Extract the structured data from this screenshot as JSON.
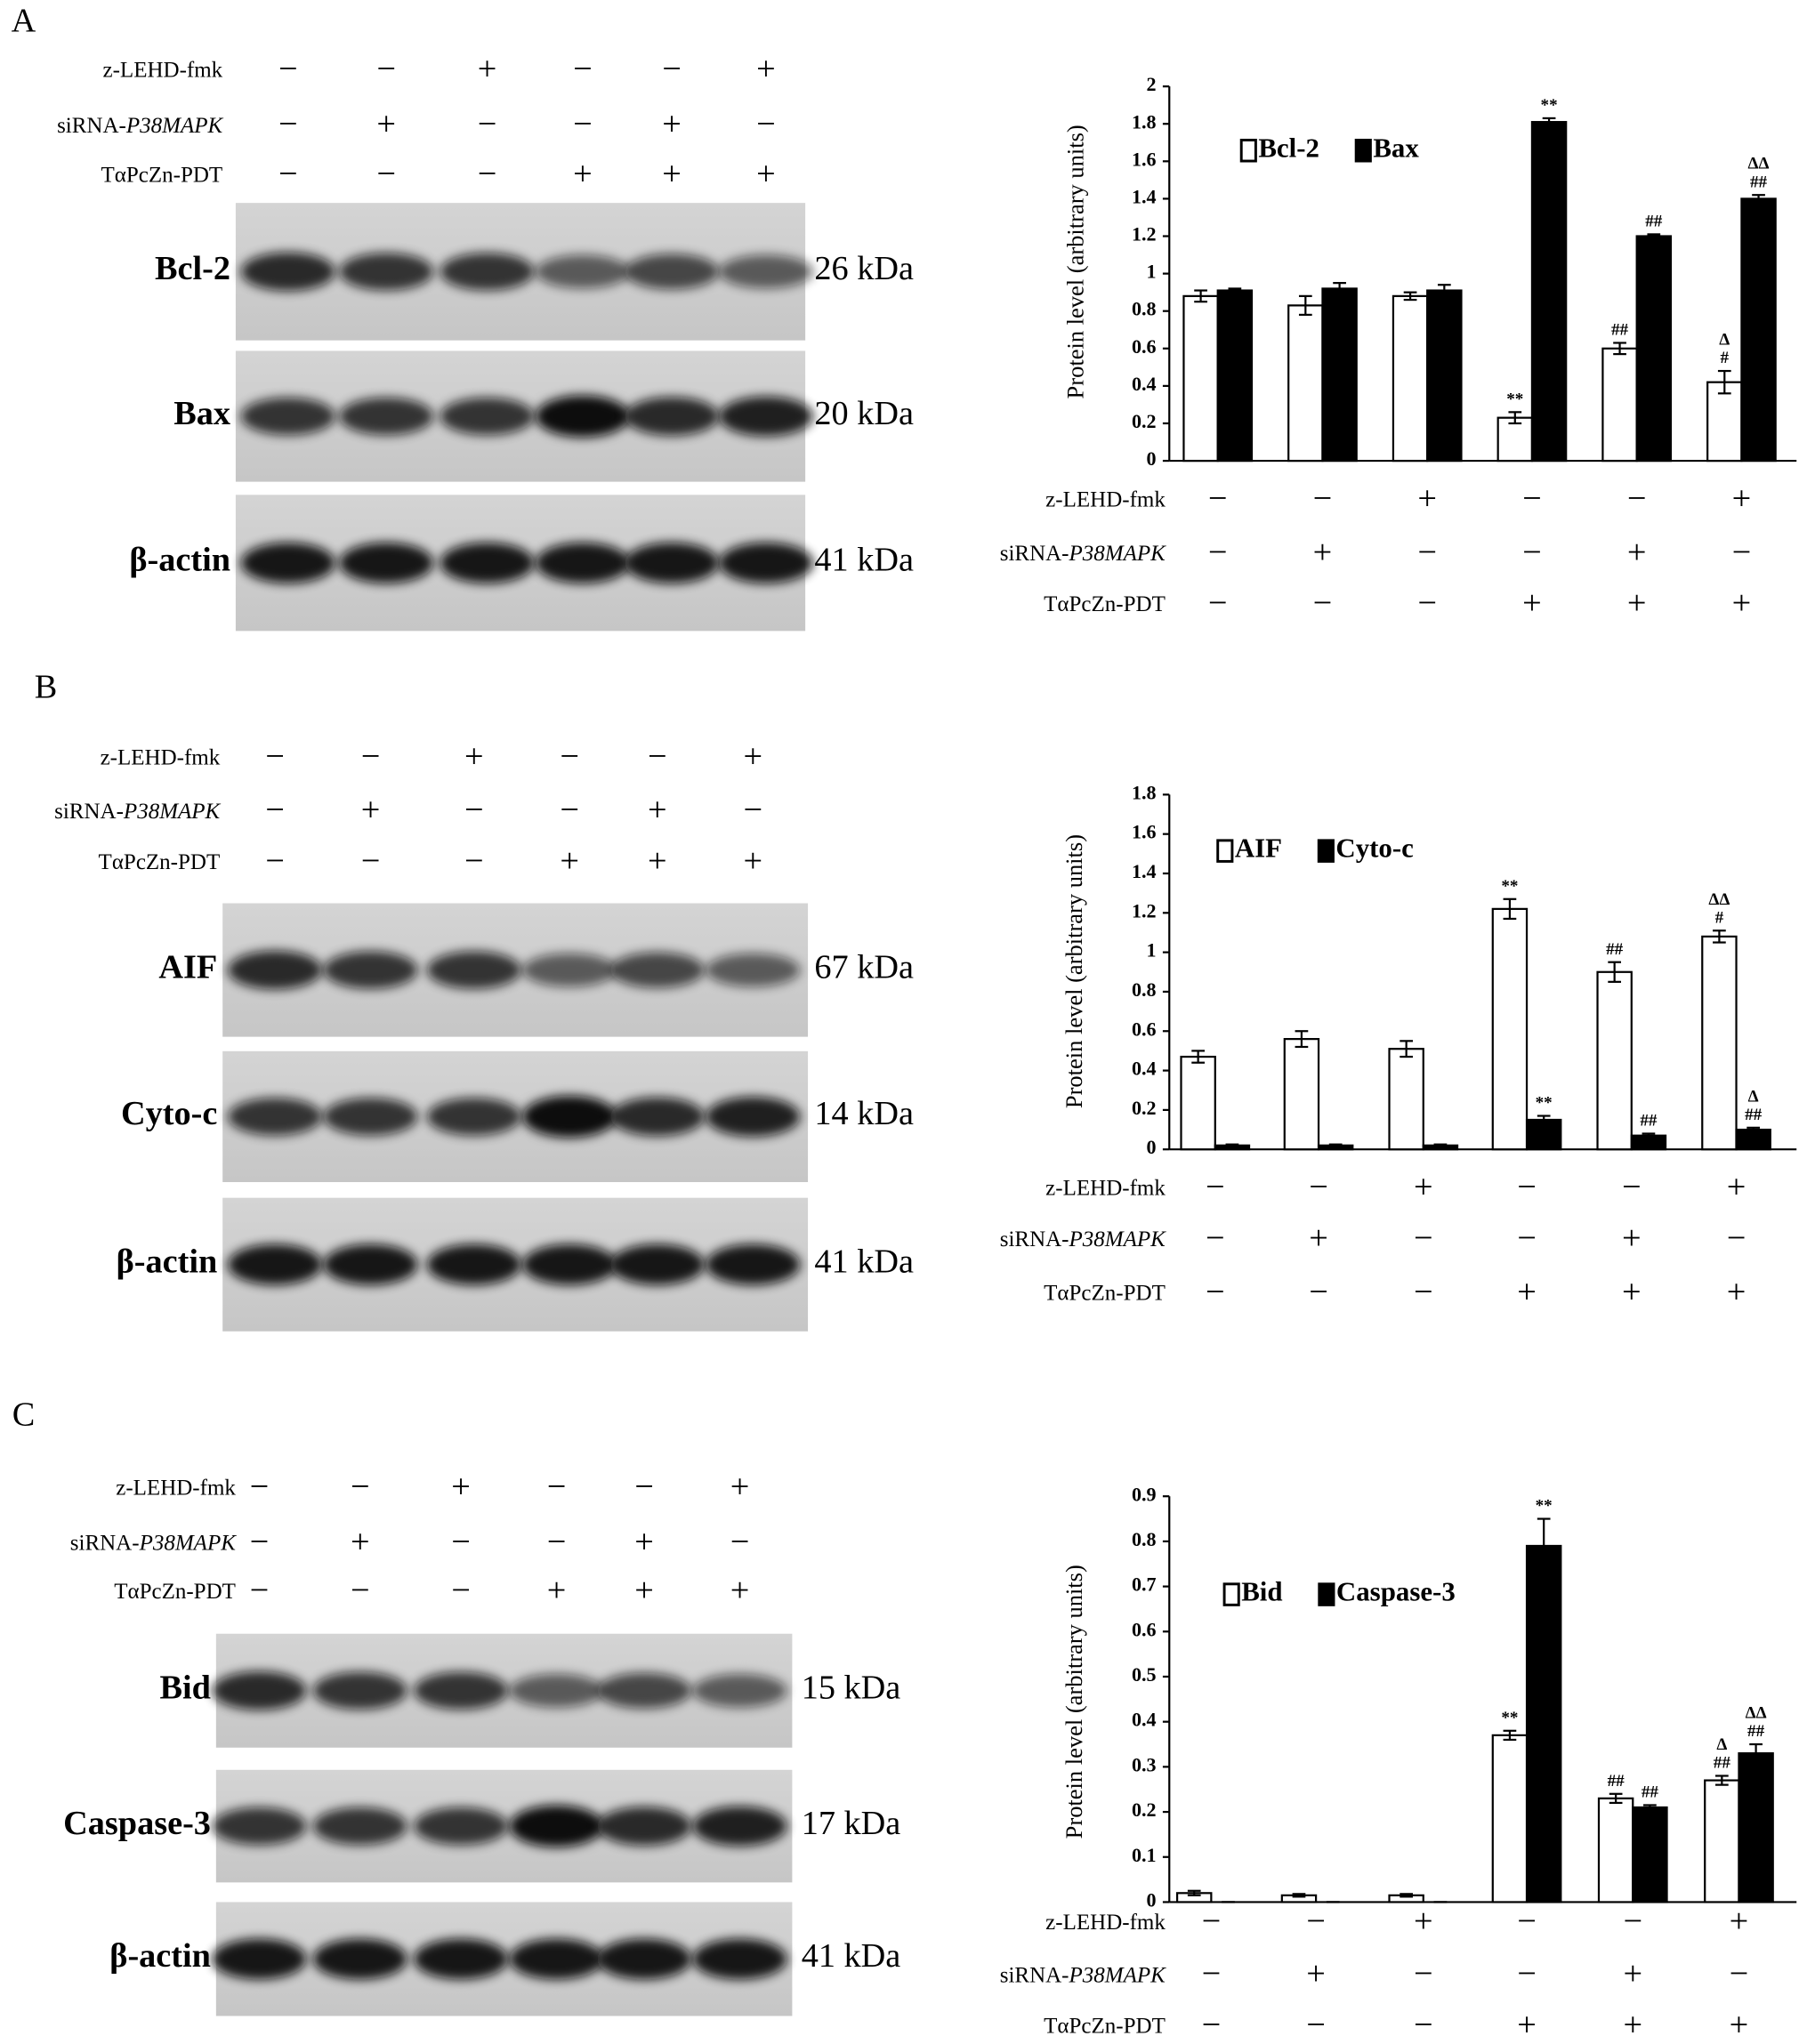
{
  "panels": [
    {
      "letter": "A",
      "treatments": [
        {
          "name": "z-LEHD-fmk",
          "values": [
            "−",
            "−",
            "+",
            "−",
            "−",
            "+"
          ]
        },
        {
          "name": "siRNA-P38MAPK",
          "values": [
            "−",
            "+",
            "−",
            "−",
            "+",
            "−"
          ]
        },
        {
          "name": "TαPcZn-PDT",
          "values": [
            "−",
            "−",
            "−",
            "+",
            "+",
            "+"
          ]
        }
      ],
      "blots": [
        {
          "name": "Bcl-2",
          "size": "26 kDa"
        },
        {
          "name": "Bax",
          "size": "20 kDa"
        },
        {
          "name": "β-actin",
          "size": "41 kDa"
        }
      ]
    },
    {
      "letter": "B",
      "treatments": [
        {
          "name": "z-LEHD-fmk",
          "values": [
            "−",
            "−",
            "+",
            "−",
            "−",
            "+"
          ]
        },
        {
          "name": "siRNA-P38MAPK",
          "values": [
            "−",
            "+",
            "−",
            "−",
            "+",
            "−"
          ]
        },
        {
          "name": "TαPcZn-PDT",
          "values": [
            "−",
            "−",
            "−",
            "+",
            "+",
            "+"
          ]
        }
      ],
      "blots": [
        {
          "name": "AIF",
          "size": "67 kDa"
        },
        {
          "name": "Cyto-c",
          "size": "14 kDa"
        },
        {
          "name": "β-actin",
          "size": "41 kDa"
        }
      ]
    },
    {
      "letter": "C",
      "treatments": [
        {
          "name": "z-LEHD-fmk",
          "values": [
            "−",
            "−",
            "+",
            "−",
            "−",
            "+"
          ]
        },
        {
          "name": "siRNA-P38MAPK",
          "values": [
            "−",
            "+",
            "−",
            "−",
            "+",
            "−"
          ]
        },
        {
          "name": "TαPcZn-PDT",
          "values": [
            "−",
            "−",
            "−",
            "+",
            "+",
            "+"
          ]
        }
      ],
      "blots": [
        {
          "name": "Bid",
          "size": "15 kDa"
        },
        {
          "name": "Caspase-3",
          "size": "17 kDa"
        },
        {
          "name": "β-actin",
          "size": "41 kDa"
        }
      ]
    }
  ],
  "chart_data": [
    {
      "type": "bar",
      "ylabel": "Protein level  (arbitrary units)",
      "ylim": [
        0,
        2
      ],
      "yticks": [
        0,
        0.2,
        0.4,
        0.6,
        0.8,
        1,
        1.2,
        1.4,
        1.6,
        1.8,
        2
      ],
      "legend": "upper left",
      "series": [
        {
          "name": "Bcl-2",
          "color": "#ffffff",
          "values": [
            0.88,
            0.83,
            0.88,
            0.23,
            0.6,
            0.42
          ],
          "errors": [
            0.03,
            0.05,
            0.02,
            0.03,
            0.03,
            0.06
          ],
          "annotations": [
            [],
            [],
            [],
            [
              "**"
            ],
            [
              "##"
            ],
            [
              "Δ",
              "#"
            ]
          ]
        },
        {
          "name": "Bax",
          "color": "#000000",
          "values": [
            0.91,
            0.92,
            0.91,
            1.81,
            1.2,
            1.4
          ],
          "errors": [
            0.01,
            0.03,
            0.03,
            0.02,
            0.01,
            0.02
          ],
          "annotations": [
            [],
            [],
            [],
            [
              "**"
            ],
            [
              "##"
            ],
            [
              "ΔΔ",
              "##"
            ]
          ]
        }
      ],
      "treatments": [
        {
          "name": "z-LEHD-fmk",
          "values": [
            "−",
            "−",
            "+",
            "−",
            "−",
            "+"
          ]
        },
        {
          "name": "siRNA-P38MAPK",
          "values": [
            "−",
            "+",
            "−",
            "−",
            "+",
            "−"
          ]
        },
        {
          "name": "TαPcZn-PDT",
          "values": [
            "−",
            "−",
            "−",
            "+",
            "+",
            "+"
          ]
        }
      ]
    },
    {
      "type": "bar",
      "ylabel": "Protein level  (arbitrary units)",
      "ylim": [
        0,
        1.8
      ],
      "yticks": [
        0,
        0.2,
        0.4,
        0.6,
        0.8,
        1,
        1.2,
        1.4,
        1.6,
        1.8
      ],
      "legend": "upper left",
      "series": [
        {
          "name": "AIF",
          "color": "#ffffff",
          "values": [
            0.47,
            0.56,
            0.51,
            1.22,
            0.9,
            1.08
          ],
          "errors": [
            0.03,
            0.04,
            0.04,
            0.05,
            0.05,
            0.03
          ],
          "annotations": [
            [],
            [],
            [],
            [
              "**"
            ],
            [
              "##"
            ],
            [
              "ΔΔ",
              "#"
            ]
          ]
        },
        {
          "name": "Cyto-c",
          "color": "#000000",
          "values": [
            0.02,
            0.02,
            0.02,
            0.15,
            0.07,
            0.1
          ],
          "errors": [
            0.005,
            0.005,
            0.005,
            0.02,
            0.01,
            0.01
          ],
          "annotations": [
            [],
            [],
            [],
            [
              "**"
            ],
            [
              "##"
            ],
            [
              "Δ",
              "##"
            ]
          ]
        }
      ],
      "treatments": [
        {
          "name": "z-LEHD-fmk",
          "values": [
            "−",
            "−",
            "+",
            "−",
            "−",
            "+"
          ]
        },
        {
          "name": "siRNA-P38MAPK",
          "values": [
            "−",
            "+",
            "−",
            "−",
            "+",
            "−"
          ]
        },
        {
          "name": "TαPcZn-PDT",
          "values": [
            "−",
            "−",
            "−",
            "+",
            "+",
            "+"
          ]
        }
      ]
    },
    {
      "type": "bar",
      "ylabel": "Protein level  (arbitrary units)",
      "ylim": [
        0,
        0.9
      ],
      "yticks": [
        0,
        0.1,
        0.2,
        0.3,
        0.4,
        0.5,
        0.6,
        0.7,
        0.8,
        0.9
      ],
      "legend": "upper left",
      "series": [
        {
          "name": "Bid",
          "color": "#ffffff",
          "values": [
            0.02,
            0.015,
            0.015,
            0.37,
            0.23,
            0.27
          ],
          "errors": [
            0.005,
            0.003,
            0.003,
            0.01,
            0.01,
            0.01
          ],
          "annotations": [
            [],
            [],
            [],
            [
              "**"
            ],
            [
              "##"
            ],
            [
              "Δ",
              "##"
            ]
          ]
        },
        {
          "name": "Caspase-3",
          "color": "#000000",
          "values": [
            0,
            0,
            0,
            0.79,
            0.21,
            0.33
          ],
          "errors": [
            0,
            0,
            0,
            0.06,
            0.005,
            0.02
          ],
          "annotations": [
            [],
            [],
            [],
            [
              "**"
            ],
            [
              "##"
            ],
            [
              "ΔΔ",
              "##"
            ]
          ]
        }
      ],
      "treatments": [
        {
          "name": "z-LEHD-fmk",
          "values": [
            "−",
            "−",
            "+",
            "−",
            "−",
            "+"
          ]
        },
        {
          "name": "siRNA-P38MAPK",
          "values": [
            "−",
            "+",
            "−",
            "−",
            "+",
            "−"
          ]
        },
        {
          "name": "TαPcZn-PDT",
          "values": [
            "−",
            "−",
            "−",
            "+",
            "+",
            "+"
          ]
        }
      ]
    }
  ]
}
